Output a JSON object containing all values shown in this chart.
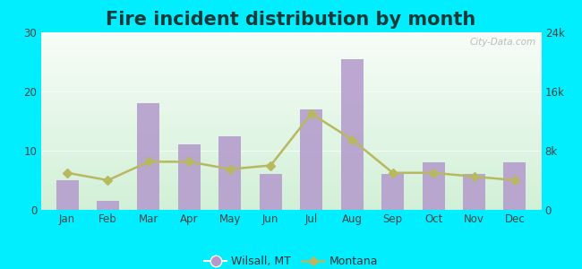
{
  "title": "Fire incident distribution by month",
  "months": [
    "Jan",
    "Feb",
    "Mar",
    "Apr",
    "May",
    "Jun",
    "Jul",
    "Aug",
    "Sep",
    "Oct",
    "Nov",
    "Dec"
  ],
  "wilsall_values": [
    5,
    1.5,
    18,
    11,
    12.5,
    6,
    17,
    25.5,
    6,
    8,
    6,
    8
  ],
  "montana_values": [
    5000,
    4000,
    6500,
    6500,
    5500,
    6000,
    13000,
    9500,
    5000,
    5000,
    4500,
    4000
  ],
  "bar_color": "#b399cc",
  "line_color": "#b8b860",
  "line_marker": "o",
  "outer_background": "#00eeff",
  "left_ylim": [
    0,
    30
  ],
  "right_ylim": [
    0,
    24000
  ],
  "left_yticks": [
    0,
    10,
    20,
    30
  ],
  "right_yticks": [
    0,
    8000,
    16000,
    24000
  ],
  "right_yticklabels": [
    "0",
    "8k",
    "16k",
    "24k"
  ],
  "legend_wilsall": "Wilsall, MT",
  "legend_montana": "Montana",
  "watermark": "City-Data.com",
  "title_fontsize": 15,
  "tick_fontsize": 8.5,
  "legend_fontsize": 9,
  "title_color": "#1a3a3a"
}
